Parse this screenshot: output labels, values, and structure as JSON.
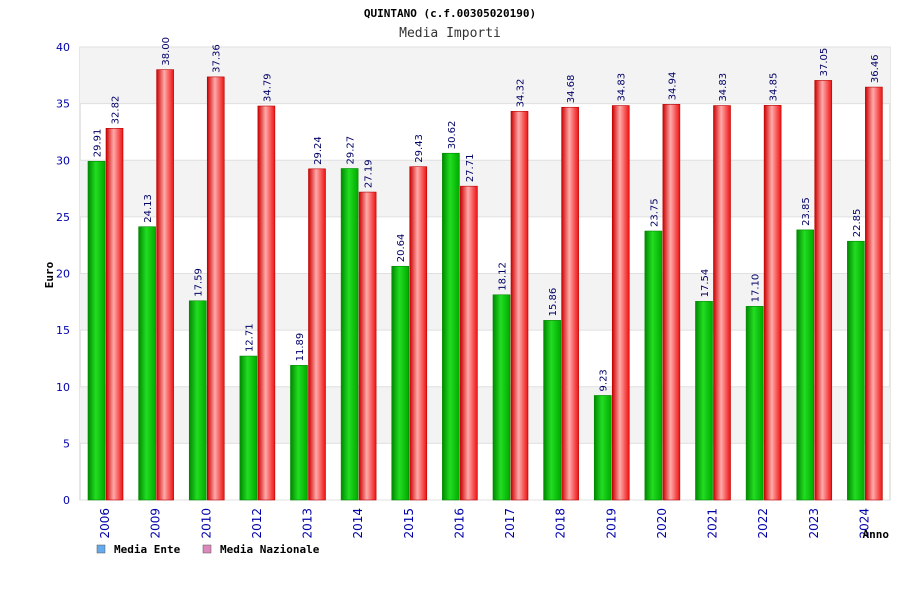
{
  "chart_data": {
    "type": "bar",
    "title": "QUINTANO (c.f.00305020190)",
    "subtitle": "Media Importi",
    "xlabel": "Anno",
    "ylabel": "Euro",
    "ylim": [
      0,
      40
    ],
    "yticks": [
      0,
      5,
      10,
      15,
      20,
      25,
      30,
      35,
      40
    ],
    "grid": true,
    "legend_position": "bottom-left",
    "categories": [
      "2006",
      "2009",
      "2010",
      "2012",
      "2013",
      "2014",
      "2015",
      "2016",
      "2017",
      "2018",
      "2019",
      "2020",
      "2021",
      "2022",
      "2023",
      "2024"
    ],
    "series": [
      {
        "name": "Media Ente",
        "color": "#00bb00",
        "legend_color": "#66aaee",
        "values": [
          29.91,
          24.13,
          17.59,
          12.71,
          11.89,
          29.27,
          20.64,
          30.62,
          18.12,
          15.86,
          9.23,
          23.75,
          17.54,
          17.1,
          23.85,
          22.85
        ],
        "labels": [
          "29.91",
          "24.13",
          "17.59",
          "12.71",
          "11.89",
          "29.27",
          "20.64",
          "30.62",
          "18.12",
          "15.86",
          "9.23",
          "23.75",
          "17.54",
          "17.10",
          "23.85",
          "22.85"
        ]
      },
      {
        "name": "Media Nazionale",
        "color": "#ee0000",
        "legend_color": "#dd88bb",
        "values": [
          32.82,
          38.0,
          37.36,
          34.79,
          29.24,
          27.19,
          29.43,
          27.71,
          34.32,
          34.68,
          34.83,
          34.94,
          34.83,
          34.85,
          37.05,
          36.46
        ],
        "labels": [
          "32.82",
          "38.00",
          "37.36",
          "34.79",
          "29.24",
          "27.19",
          "29.43",
          "27.71",
          "34.32",
          "34.68",
          "34.83",
          "34.94",
          "34.83",
          "34.85",
          "37.05",
          "36.46"
        ]
      }
    ]
  }
}
